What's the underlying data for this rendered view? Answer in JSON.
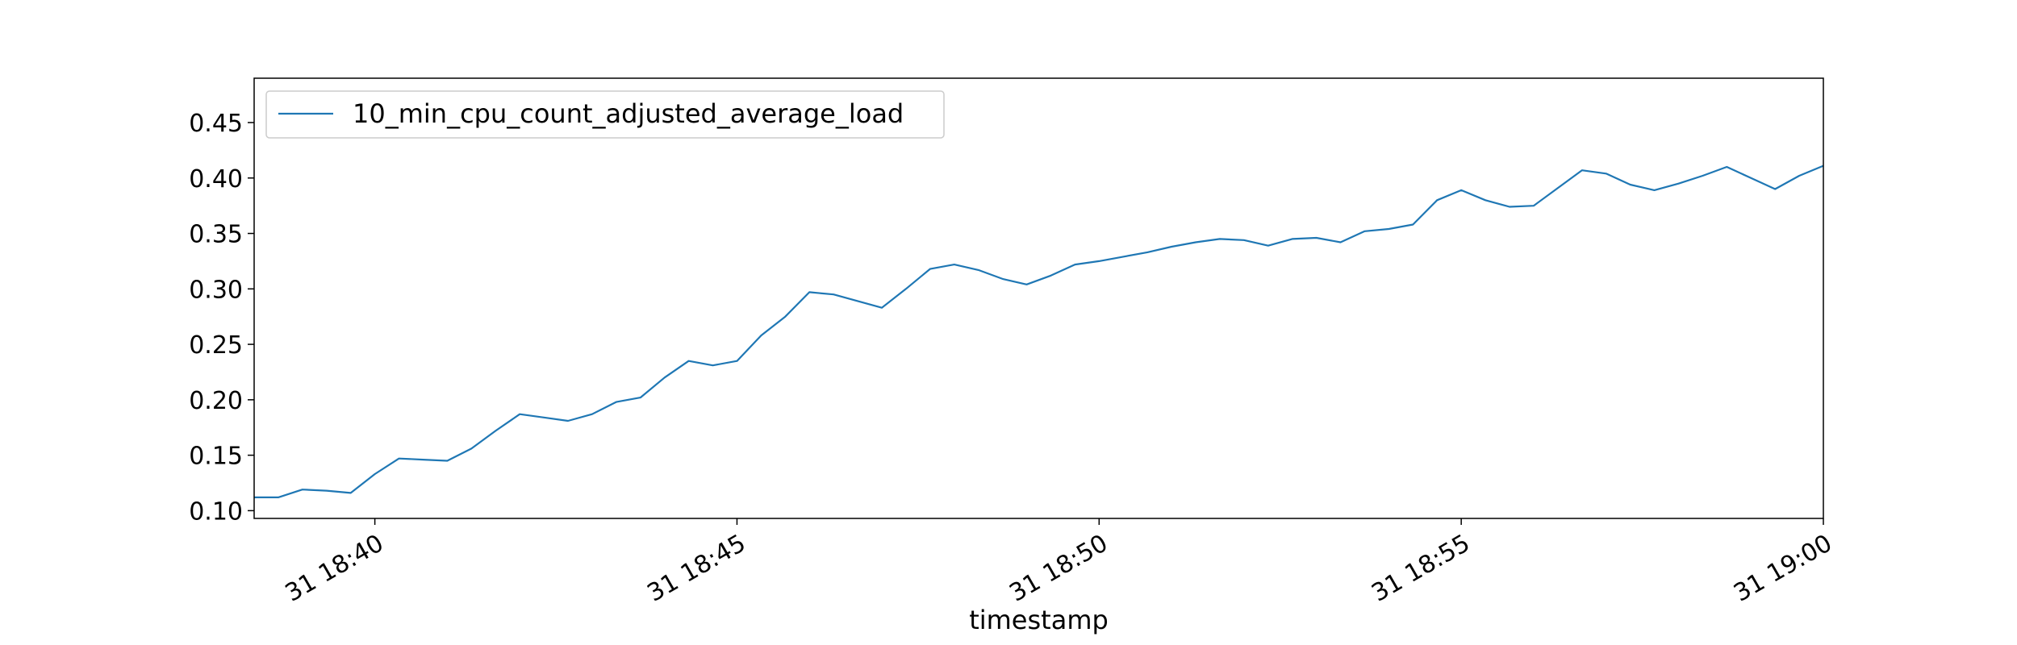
{
  "chart_data": {
    "type": "line",
    "title": "",
    "xlabel": "timestamp",
    "ylabel": "",
    "xlim": [
      "31 18:38:20",
      "31 19:00:00"
    ],
    "ylim": [
      0.093,
      0.49
    ],
    "x_ticks": [
      {
        "label": "31 18:40",
        "time": "31 18:40"
      },
      {
        "label": "31 18:45",
        "time": "31 18:45"
      },
      {
        "label": "31 18:50",
        "time": "31 18:50"
      },
      {
        "label": "31 18:55",
        "time": "31 18:55"
      },
      {
        "label": "31 19:00",
        "time": "31 19:00"
      }
    ],
    "y_ticks": [
      {
        "label": "0.10",
        "value": 0.1
      },
      {
        "label": "0.15",
        "value": 0.15
      },
      {
        "label": "0.20",
        "value": 0.2
      },
      {
        "label": "0.25",
        "value": 0.25
      },
      {
        "label": "0.30",
        "value": 0.3
      },
      {
        "label": "0.35",
        "value": 0.35
      },
      {
        "label": "0.40",
        "value": 0.4
      },
      {
        "label": "0.45",
        "value": 0.45
      }
    ],
    "grid": false,
    "legend_position": "top-left",
    "series": [
      {
        "name": "10_min_cpu_count_adjusted_average_load",
        "color": "#1f77b4",
        "points": [
          [
            "31 18:38:20",
            0.112
          ],
          [
            "31 18:38:40",
            0.112
          ],
          [
            "31 18:39:00",
            0.119
          ],
          [
            "31 18:39:20",
            0.118
          ],
          [
            "31 18:39:40",
            0.116
          ],
          [
            "31 18:40:00",
            0.133
          ],
          [
            "31 18:40:20",
            0.147
          ],
          [
            "31 18:40:40",
            0.146
          ],
          [
            "31 18:41:00",
            0.145
          ],
          [
            "31 18:41:20",
            0.156
          ],
          [
            "31 18:41:40",
            0.172
          ],
          [
            "31 18:42:00",
            0.187
          ],
          [
            "31 18:42:20",
            0.184
          ],
          [
            "31 18:42:40",
            0.181
          ],
          [
            "31 18:43:00",
            0.187
          ],
          [
            "31 18:43:20",
            0.198
          ],
          [
            "31 18:43:40",
            0.202
          ],
          [
            "31 18:44:00",
            0.22
          ],
          [
            "31 18:44:20",
            0.235
          ],
          [
            "31 18:44:40",
            0.231
          ],
          [
            "31 18:45:00",
            0.235
          ],
          [
            "31 18:45:20",
            0.258
          ],
          [
            "31 18:45:40",
            0.275
          ],
          [
            "31 18:46:00",
            0.297
          ],
          [
            "31 18:46:20",
            0.295
          ],
          [
            "31 18:46:40",
            0.289
          ],
          [
            "31 18:47:00",
            0.283
          ],
          [
            "31 18:47:20",
            0.3
          ],
          [
            "31 18:47:40",
            0.318
          ],
          [
            "31 18:48:00",
            0.322
          ],
          [
            "31 18:48:20",
            0.317
          ],
          [
            "31 18:48:40",
            0.309
          ],
          [
            "31 18:49:00",
            0.304
          ],
          [
            "31 18:49:20",
            0.312
          ],
          [
            "31 18:49:40",
            0.322
          ],
          [
            "31 18:50:00",
            0.325
          ],
          [
            "31 18:50:20",
            0.329
          ],
          [
            "31 18:50:40",
            0.333
          ],
          [
            "31 18:51:00",
            0.338
          ],
          [
            "31 18:51:20",
            0.342
          ],
          [
            "31 18:51:40",
            0.345
          ],
          [
            "31 18:52:00",
            0.344
          ],
          [
            "31 18:52:20",
            0.339
          ],
          [
            "31 18:52:40",
            0.345
          ],
          [
            "31 18:53:00",
            0.346
          ],
          [
            "31 18:53:20",
            0.342
          ],
          [
            "31 18:53:40",
            0.352
          ],
          [
            "31 18:54:00",
            0.354
          ],
          [
            "31 18:54:20",
            0.358
          ],
          [
            "31 18:54:40",
            0.38
          ],
          [
            "31 18:55:00",
            0.389
          ],
          [
            "31 18:55:20",
            0.38
          ],
          [
            "31 18:55:40",
            0.374
          ],
          [
            "31 18:56:00",
            0.375
          ],
          [
            "31 18:56:20",
            0.391
          ],
          [
            "31 18:56:40",
            0.407
          ],
          [
            "31 18:57:00",
            0.404
          ],
          [
            "31 18:57:20",
            0.394
          ],
          [
            "31 18:57:40",
            0.389
          ],
          [
            "31 18:58:00",
            0.395
          ],
          [
            "31 18:58:20",
            0.402
          ],
          [
            "31 18:58:40",
            0.41
          ],
          [
            "31 18:59:00",
            0.4
          ],
          [
            "31 18:59:20",
            0.39
          ],
          [
            "31 18:59:40",
            0.402
          ],
          [
            "31 19:00:00",
            0.411
          ]
        ]
      }
    ]
  }
}
